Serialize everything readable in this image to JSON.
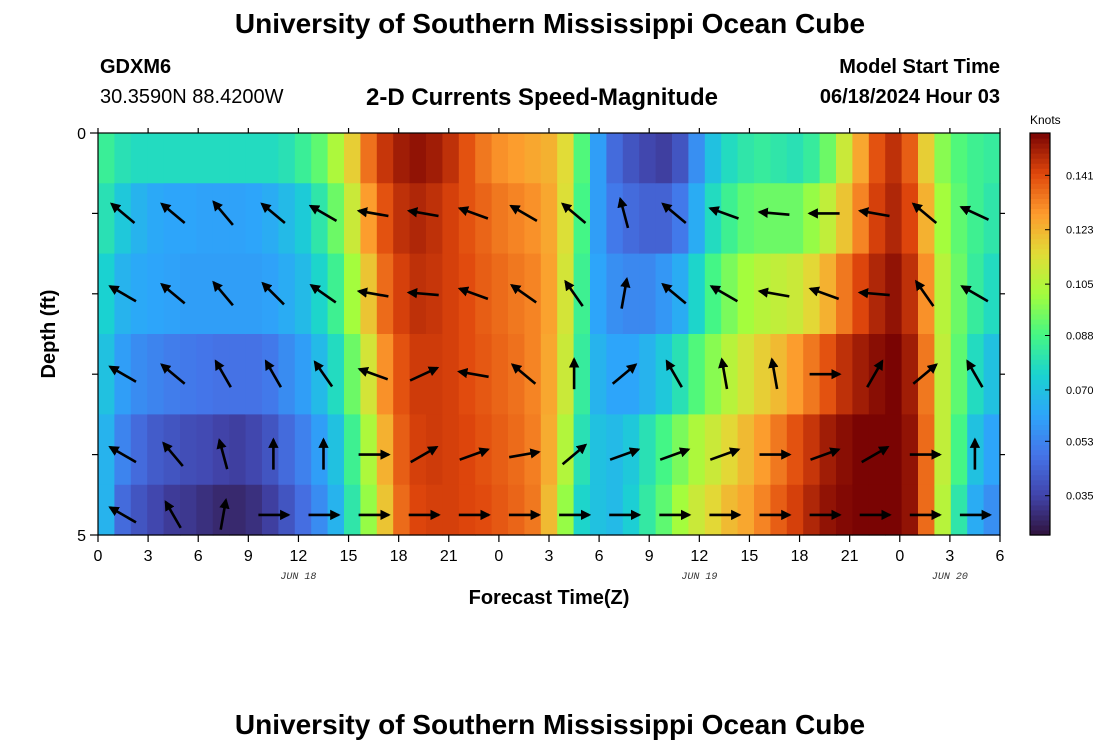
{
  "header": {
    "title": "University of Southern Mississippi Ocean Cube",
    "station": "GDXM6",
    "coords": "30.3590N  88.4200W",
    "subtitle": "2-D Currents Speed-Magnitude",
    "model_label": "Model Start Time",
    "model_time": "06/18/2024 Hour 03"
  },
  "footer": {
    "title": "University of Southern Mississippi Ocean Cube"
  },
  "colors": {
    "background": "#ffffff",
    "axis": "#000000",
    "arrow": "#000000"
  },
  "chart_data": {
    "type": "heatmap",
    "title": "2-D Currents Speed-Magnitude",
    "xlabel": "Forecast Time(Z)",
    "ylabel": "Depth (ft)",
    "x_tick_labels": [
      "0",
      "3",
      "6",
      "9",
      "12",
      "15",
      "18",
      "21",
      "0",
      "3",
      "6",
      "9",
      "12",
      "15",
      "18",
      "21",
      "0",
      "3",
      "6"
    ],
    "x_range_hours": [
      0,
      54
    ],
    "date_labels": [
      {
        "text": "JUN 18",
        "hour": 12
      },
      {
        "text": "JUN 19",
        "hour": 36
      },
      {
        "text": "JUN 20",
        "hour": 51
      }
    ],
    "y_tick_labels": [
      "0",
      "5"
    ],
    "ylim": [
      0,
      5
    ],
    "colorbar": {
      "label": "Knots",
      "ticks": [
        "0.141",
        "0.123",
        "0.105",
        "0.088",
        "0.070",
        "0.053",
        "0.035"
      ],
      "range": [
        0.022,
        0.155
      ]
    },
    "depth_rows": [
      0.25,
      1.0,
      2.0,
      3.0,
      4.0,
      4.75
    ],
    "speed_columns_knots": [
      [
        0.085,
        0.08,
        0.075,
        0.07,
        0.066,
        0.066
      ],
      [
        0.08,
        0.072,
        0.066,
        0.06,
        0.053,
        0.046
      ],
      [
        0.078,
        0.066,
        0.063,
        0.055,
        0.046,
        0.04
      ],
      [
        0.078,
        0.063,
        0.062,
        0.053,
        0.042,
        0.036
      ],
      [
        0.078,
        0.062,
        0.061,
        0.051,
        0.04,
        0.033
      ],
      [
        0.078,
        0.062,
        0.06,
        0.05,
        0.038,
        0.032
      ],
      [
        0.078,
        0.061,
        0.06,
        0.049,
        0.037,
        0.03
      ],
      [
        0.078,
        0.061,
        0.06,
        0.048,
        0.035,
        0.028
      ],
      [
        0.078,
        0.061,
        0.06,
        0.048,
        0.034,
        0.028
      ],
      [
        0.078,
        0.062,
        0.06,
        0.048,
        0.036,
        0.03
      ],
      [
        0.078,
        0.064,
        0.061,
        0.05,
        0.04,
        0.034
      ],
      [
        0.08,
        0.068,
        0.064,
        0.055,
        0.046,
        0.04
      ],
      [
        0.085,
        0.073,
        0.068,
        0.06,
        0.052,
        0.047
      ],
      [
        0.092,
        0.082,
        0.076,
        0.068,
        0.06,
        0.055
      ],
      [
        0.104,
        0.094,
        0.086,
        0.078,
        0.07,
        0.066
      ],
      [
        0.118,
        0.11,
        0.102,
        0.094,
        0.086,
        0.082
      ],
      [
        0.135,
        0.128,
        0.12,
        0.112,
        0.104,
        0.1
      ],
      [
        0.145,
        0.14,
        0.136,
        0.13,
        0.124,
        0.12
      ],
      [
        0.15,
        0.146,
        0.143,
        0.14,
        0.138,
        0.136
      ],
      [
        0.152,
        0.148,
        0.146,
        0.144,
        0.143,
        0.142
      ],
      [
        0.15,
        0.146,
        0.145,
        0.144,
        0.144,
        0.143
      ],
      [
        0.146,
        0.143,
        0.143,
        0.143,
        0.143,
        0.143
      ],
      [
        0.14,
        0.14,
        0.141,
        0.141,
        0.142,
        0.142
      ],
      [
        0.134,
        0.137,
        0.138,
        0.139,
        0.14,
        0.141
      ],
      [
        0.13,
        0.134,
        0.136,
        0.137,
        0.138,
        0.139
      ],
      [
        0.128,
        0.132,
        0.134,
        0.135,
        0.136,
        0.137
      ],
      [
        0.126,
        0.13,
        0.132,
        0.132,
        0.133,
        0.134
      ],
      [
        0.124,
        0.126,
        0.127,
        0.126,
        0.125,
        0.122
      ],
      [
        0.115,
        0.114,
        0.112,
        0.11,
        0.105,
        0.1
      ],
      [
        0.09,
        0.088,
        0.086,
        0.084,
        0.08,
        0.076
      ],
      [
        0.06,
        0.06,
        0.062,
        0.066,
        0.07,
        0.07
      ],
      [
        0.046,
        0.05,
        0.056,
        0.062,
        0.068,
        0.068
      ],
      [
        0.04,
        0.046,
        0.054,
        0.062,
        0.072,
        0.074
      ],
      [
        0.036,
        0.044,
        0.054,
        0.066,
        0.08,
        0.083
      ],
      [
        0.034,
        0.044,
        0.058,
        0.072,
        0.088,
        0.092
      ],
      [
        0.04,
        0.05,
        0.064,
        0.08,
        0.096,
        0.102
      ],
      [
        0.056,
        0.064,
        0.076,
        0.09,
        0.104,
        0.11
      ],
      [
        0.07,
        0.078,
        0.088,
        0.098,
        0.11,
        0.116
      ],
      [
        0.078,
        0.086,
        0.096,
        0.106,
        0.116,
        0.122
      ],
      [
        0.082,
        0.092,
        0.102,
        0.112,
        0.122,
        0.126
      ],
      [
        0.084,
        0.094,
        0.106,
        0.118,
        0.128,
        0.132
      ],
      [
        0.082,
        0.094,
        0.108,
        0.122,
        0.134,
        0.138
      ],
      [
        0.08,
        0.094,
        0.11,
        0.128,
        0.14,
        0.143
      ],
      [
        0.084,
        0.1,
        0.116,
        0.134,
        0.145,
        0.148
      ],
      [
        0.094,
        0.108,
        0.124,
        0.14,
        0.15,
        0.152
      ],
      [
        0.11,
        0.12,
        0.134,
        0.146,
        0.153,
        0.154
      ],
      [
        0.126,
        0.132,
        0.142,
        0.15,
        0.155,
        0.155
      ],
      [
        0.14,
        0.143,
        0.148,
        0.153,
        0.156,
        0.156
      ],
      [
        0.146,
        0.148,
        0.152,
        0.155,
        0.156,
        0.156
      ],
      [
        0.138,
        0.142,
        0.146,
        0.15,
        0.152,
        0.152
      ],
      [
        0.118,
        0.124,
        0.13,
        0.134,
        0.136,
        0.136
      ],
      [
        0.098,
        0.102,
        0.106,
        0.108,
        0.108,
        0.106
      ],
      [
        0.09,
        0.092,
        0.094,
        0.092,
        0.088,
        0.082
      ],
      [
        0.086,
        0.086,
        0.084,
        0.078,
        0.07,
        0.064
      ],
      [
        0.084,
        0.082,
        0.078,
        0.07,
        0.062,
        0.056
      ]
    ],
    "vector_hours": [
      1.5,
      4.5,
      7.5,
      10.5,
      13.5,
      16.5,
      19.5,
      22.5,
      25.5,
      28.5,
      31.5,
      34.5,
      37.5,
      40.5,
      43.5,
      46.5,
      49.5,
      52.5
    ],
    "vector_rows": [
      1.0,
      2.0,
      3.0,
      4.0,
      4.75
    ],
    "vector_angles_deg": [
      [
        140,
        140,
        130,
        140,
        150,
        170,
        170,
        160,
        150,
        140,
        105,
        140,
        160,
        175,
        180,
        170,
        140,
        155
      ],
      [
        150,
        140,
        130,
        135,
        145,
        170,
        175,
        160,
        145,
        125,
        80,
        140,
        150,
        170,
        160,
        175,
        125,
        150
      ],
      [
        150,
        140,
        120,
        120,
        125,
        160,
        25,
        170,
        140,
        90,
        40,
        120,
        100,
        100,
        0,
        60,
        40,
        120
      ],
      [
        150,
        130,
        105,
        90,
        90,
        0,
        30,
        20,
        10,
        40,
        20,
        20,
        20,
        0,
        20,
        30,
        0,
        90
      ],
      [
        150,
        120,
        80,
        0,
        0,
        0,
        0,
        0,
        0,
        0,
        0,
        0,
        0,
        0,
        0,
        0,
        0,
        0
      ]
    ]
  }
}
